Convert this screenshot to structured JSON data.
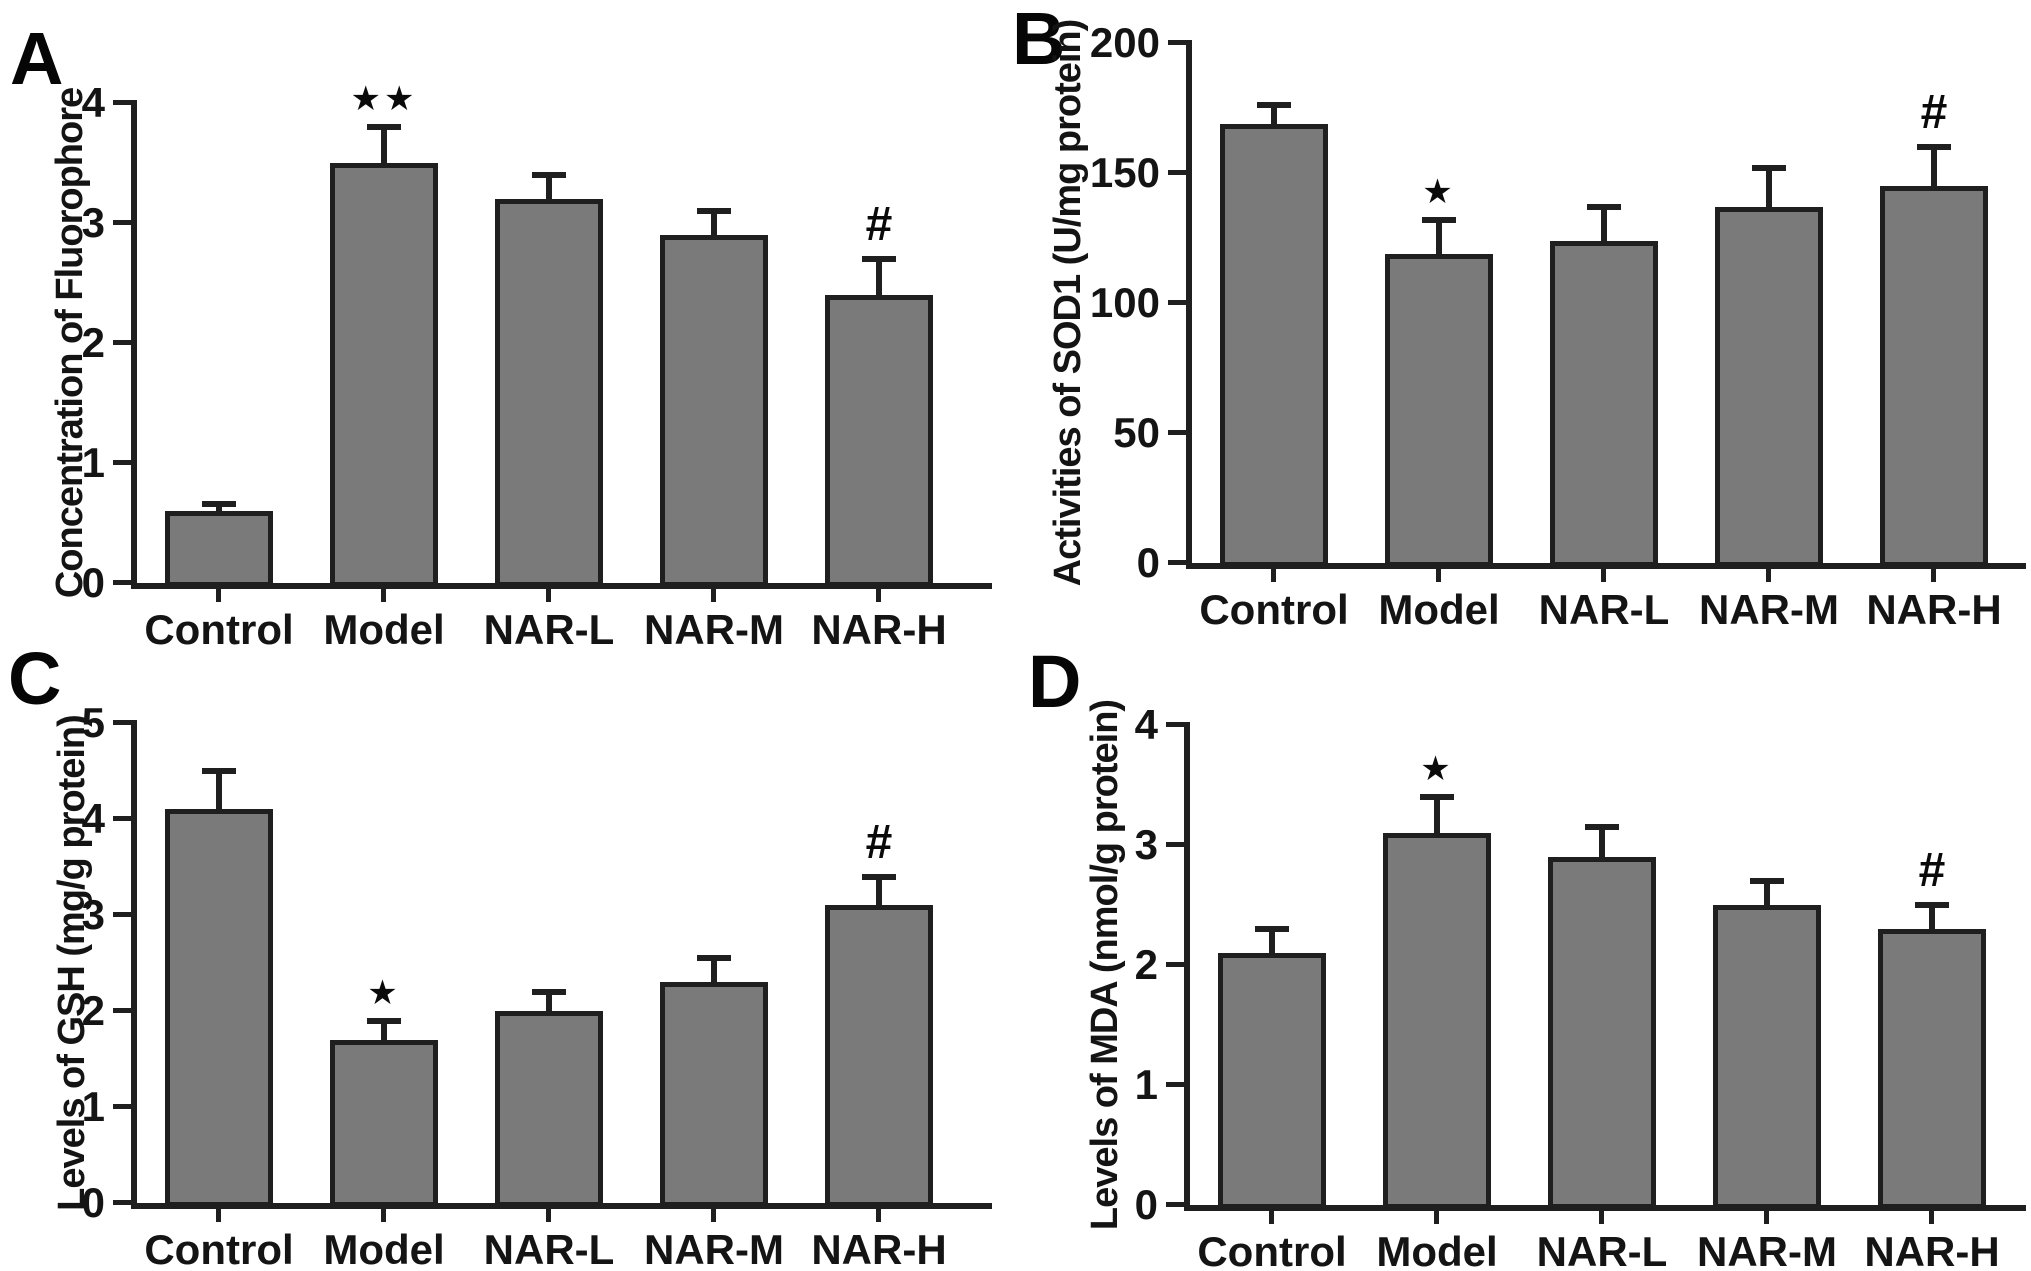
{
  "figure": {
    "background": "#ffffff",
    "bar_fill_color": "#7a7a7a",
    "bar_edge_color": "#1f1f1f",
    "panel_letters": [
      "A",
      "B",
      "C",
      "D"
    ],
    "group_labels": [
      "Control",
      "Model",
      "NAR-L",
      "NAR-M",
      "NAR-H"
    ]
  },
  "chart_data": [
    {
      "type": "bar",
      "letter": "A",
      "title": "",
      "xlabel": "",
      "ylabel": "Concentration of Fluorophore",
      "categories": [
        "Control",
        "Model",
        "NAR-L",
        "NAR-M",
        "NAR-H"
      ],
      "values": [
        0.6,
        3.5,
        3.2,
        2.9,
        2.4
      ],
      "errors": [
        0.06,
        0.3,
        0.2,
        0.2,
        0.3
      ],
      "annotations": [
        "",
        "**",
        "",
        "",
        "#"
      ],
      "ylim": [
        0,
        4
      ],
      "yticks": [
        0,
        1,
        2,
        3,
        4
      ],
      "grid": false,
      "legend": null,
      "bar_color": "#7a7a7a"
    },
    {
      "type": "bar",
      "letter": "B",
      "title": "",
      "xlabel": "",
      "ylabel": "Activities of SOD1 (U/mg protein)",
      "categories": [
        "Control",
        "Model",
        "NAR-L",
        "NAR-M",
        "NAR-H"
      ],
      "values": [
        169,
        119,
        124,
        137,
        145
      ],
      "errors": [
        7,
        13,
        13,
        15,
        15
      ],
      "annotations": [
        "",
        "*",
        "",
        "",
        "#"
      ],
      "ylim": [
        0,
        200
      ],
      "yticks": [
        0,
        50,
        100,
        150,
        200
      ],
      "grid": false,
      "legend": null,
      "bar_color": "#7a7a7a"
    },
    {
      "type": "bar",
      "letter": "C",
      "title": "",
      "xlabel": "",
      "ylabel": "Levels of GSH (mg/g protein)",
      "categories": [
        "Control",
        "Model",
        "NAR-L",
        "NAR-M",
        "NAR-H"
      ],
      "values": [
        4.1,
        1.7,
        2.0,
        2.3,
        3.1
      ],
      "errors": [
        0.4,
        0.2,
        0.2,
        0.25,
        0.3
      ],
      "annotations": [
        "",
        "*",
        "",
        "",
        "#"
      ],
      "ylim": [
        0,
        5
      ],
      "yticks": [
        0,
        1,
        2,
        3,
        4,
        5
      ],
      "grid": false,
      "legend": null,
      "bar_color": "#7a7a7a"
    },
    {
      "type": "bar",
      "letter": "D",
      "title": "",
      "xlabel": "",
      "ylabel": "Levels of MDA (nmol/g protein)",
      "categories": [
        "Control",
        "Model",
        "NAR-L",
        "NAR-M",
        "NAR-H"
      ],
      "values": [
        2.1,
        3.1,
        2.9,
        2.5,
        2.3
      ],
      "errors": [
        0.2,
        0.3,
        0.25,
        0.2,
        0.2
      ],
      "annotations": [
        "",
        "*",
        "",
        "",
        "#"
      ],
      "ylim": [
        0,
        4
      ],
      "yticks": [
        0,
        1,
        2,
        3,
        4
      ],
      "grid": false,
      "legend": null,
      "bar_color": "#7a7a7a"
    }
  ]
}
